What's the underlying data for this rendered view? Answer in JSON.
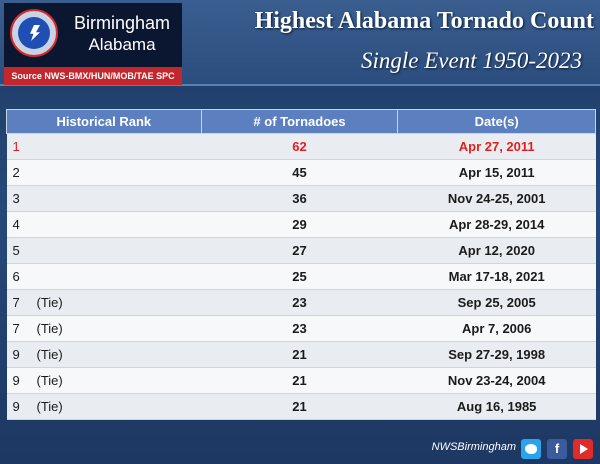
{
  "logo": {
    "seal_text": "NATIONAL WEATHER SERVICE",
    "city": "Birmingham",
    "state": "Alabama",
    "source": "Source NWS-BMX/HUN/MOB/TAE SPC"
  },
  "header": {
    "title": "Highest Alabama Tornado Count",
    "subtitle": "Single Event 1950-2023"
  },
  "table": {
    "columns": [
      "Historical Rank",
      "# of Tornadoes",
      "Date(s)"
    ],
    "rows": [
      {
        "rank": "1",
        "tie": "",
        "count": "62",
        "date": "Apr 27, 2011"
      },
      {
        "rank": "2",
        "tie": "",
        "count": "45",
        "date": "Apr 15, 2011"
      },
      {
        "rank": "3",
        "tie": "",
        "count": "36",
        "date": "Nov 24-25, 2001"
      },
      {
        "rank": "4",
        "tie": "",
        "count": "29",
        "date": "Apr 28-29, 2014"
      },
      {
        "rank": "5",
        "tie": "",
        "count": "27",
        "date": "Apr 12, 2020"
      },
      {
        "rank": "6",
        "tie": "",
        "count": "25",
        "date": "Mar 17-18, 2021"
      },
      {
        "rank": "7",
        "tie": "(Tie)",
        "count": "23",
        "date": "Sep 25, 2005"
      },
      {
        "rank": "7",
        "tie": "(Tie)",
        "count": "23",
        "date": "Apr 7, 2006"
      },
      {
        "rank": "9",
        "tie": "(Tie)",
        "count": "21",
        "date": "Sep 27-29, 1998"
      },
      {
        "rank": "9",
        "tie": "(Tie)",
        "count": "21",
        "date": "Nov 23-24, 2004"
      },
      {
        "rank": "9",
        "tie": "(Tie)",
        "count": "21",
        "date": "Aug 16, 1985"
      }
    ],
    "highlight_color": "#e02020"
  },
  "footer": {
    "handle": "NWSBirmingham",
    "social_icons": [
      "twitter-icon",
      "facebook-icon",
      "youtube-icon"
    ],
    "facebook_glyph": "f"
  }
}
